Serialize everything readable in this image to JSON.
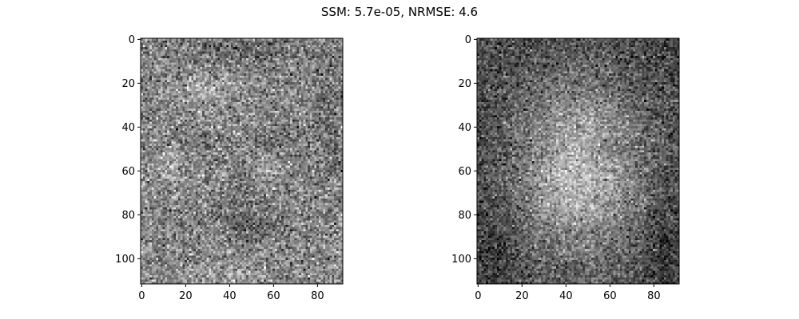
{
  "figure": {
    "title": "SSM: 5.7e-05, NRMSE: 4.6"
  },
  "colors": {
    "background": "#ffffff",
    "axis": "#000000",
    "colormap": "gray"
  },
  "panels": [
    {
      "name": "left-image",
      "image_rows": 112,
      "image_cols": 92,
      "x_ticks": [
        "0",
        "20",
        "40",
        "60",
        "80"
      ],
      "y_ticks": [
        "0",
        "20",
        "40",
        "60",
        "80",
        "100"
      ],
      "x_tick_values": [
        0,
        20,
        40,
        60,
        80
      ],
      "y_tick_values": [
        0,
        20,
        40,
        60,
        80,
        100
      ]
    },
    {
      "name": "right-image",
      "image_rows": 112,
      "image_cols": 92,
      "x_ticks": [
        "0",
        "20",
        "40",
        "60",
        "80"
      ],
      "y_ticks": [
        "0",
        "20",
        "40",
        "60",
        "80",
        "100"
      ],
      "x_tick_values": [
        0,
        20,
        40,
        60,
        80
      ],
      "y_tick_values": [
        0,
        20,
        40,
        60,
        80,
        100
      ]
    }
  ]
}
